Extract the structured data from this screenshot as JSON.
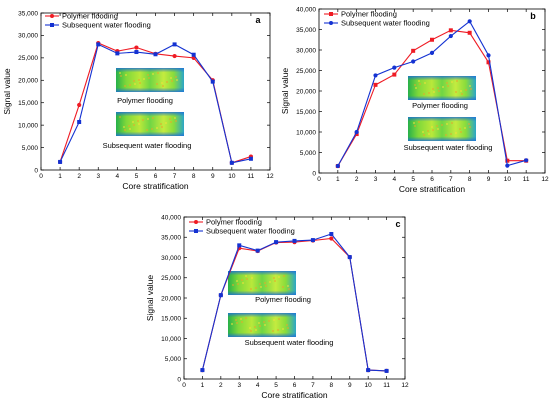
{
  "figure": {
    "colors": {
      "polymer": "#ef1b24",
      "water": "#1432d2",
      "axis": "#000000",
      "background": "#ffffff"
    },
    "charts_order": [
      "a",
      "b",
      "c"
    ]
  },
  "chart_data": [
    {
      "panel": "a",
      "type": "line",
      "xlabel": "Core stratification",
      "ylabel": "Signal value",
      "xlim": [
        0,
        12
      ],
      "ylim": [
        0,
        35000
      ],
      "xticks": [
        0,
        1,
        2,
        3,
        4,
        5,
        6,
        7,
        8,
        9,
        10,
        11,
        12
      ],
      "xtick_labels": [
        "0",
        "1",
        "2",
        "3",
        "4",
        "5",
        "6",
        "7",
        "8",
        "9",
        "10",
        "11",
        "12"
      ],
      "yticks": [
        0,
        5000,
        10000,
        15000,
        20000,
        25000,
        30000,
        35000
      ],
      "ytick_labels": [
        "0",
        "5,000",
        "10,000",
        "15,000",
        "20,000",
        "25,000",
        "30,000",
        "35,000"
      ],
      "x": [
        1,
        2,
        3,
        4,
        5,
        6,
        7,
        8,
        9,
        10,
        11
      ],
      "series": [
        {
          "name": "Polymer flooding",
          "marker": "circle",
          "color": "#ef1b24",
          "values": [
            1800,
            14500,
            28300,
            26500,
            27300,
            25900,
            25400,
            25000,
            20000,
            1600,
            3000
          ]
        },
        {
          "name": "Subsequent water flooding",
          "marker": "square",
          "color": "#1432d2",
          "values": [
            1800,
            10700,
            28000,
            26000,
            26300,
            25800,
            28000,
            25700,
            19700,
            1600,
            2500
          ]
        }
      ],
      "legend_position": "top-left",
      "inset_labels": [
        "Polymer flooding",
        "Subsequent water flooding"
      ]
    },
    {
      "panel": "b",
      "type": "line",
      "xlabel": "Core stratification",
      "ylabel": "Signal value",
      "xlim": [
        0,
        12
      ],
      "ylim": [
        0,
        40000
      ],
      "xticks": [
        0,
        1,
        2,
        3,
        4,
        5,
        6,
        7,
        8,
        9,
        10,
        11,
        12
      ],
      "xtick_labels": [
        "0",
        "1",
        "2",
        "3",
        "4",
        "5",
        "6",
        "7",
        "8",
        "9",
        "10",
        "11",
        "12"
      ],
      "yticks": [
        0,
        5000,
        10000,
        15000,
        20000,
        25000,
        30000,
        35000,
        40000
      ],
      "ytick_labels": [
        "0",
        "5,000",
        "10,000",
        "15,000",
        "20,000",
        "25,000",
        "30,000",
        "35,000",
        "40,000"
      ],
      "x": [
        1,
        2,
        3,
        4,
        5,
        6,
        7,
        8,
        9,
        10,
        11
      ],
      "series": [
        {
          "name": "Polymer flooding",
          "marker": "square",
          "color": "#ef1b24",
          "values": [
            1700,
            9500,
            21500,
            24000,
            29800,
            32500,
            34800,
            34200,
            27000,
            3000,
            3000
          ]
        },
        {
          "name": "Subsequent water flooding",
          "marker": "circle",
          "color": "#1432d2",
          "values": [
            1700,
            10000,
            23800,
            25700,
            27200,
            29300,
            33400,
            37000,
            28700,
            1800,
            3100
          ]
        }
      ],
      "legend_position": "top-left",
      "inset_labels": [
        "Polymer flooding",
        "Subsequent water flooding"
      ]
    },
    {
      "panel": "c",
      "type": "line",
      "xlabel": "Core stratification",
      "ylabel": "Signal value",
      "xlim": [
        0,
        12
      ],
      "ylim": [
        0,
        40000
      ],
      "xticks": [
        0,
        1,
        2,
        3,
        4,
        5,
        6,
        7,
        8,
        9,
        10,
        11,
        12
      ],
      "xtick_labels": [
        "0",
        "1",
        "2",
        "3",
        "4",
        "5",
        "6",
        "7",
        "8",
        "9",
        "10",
        "11",
        "12"
      ],
      "yticks": [
        0,
        5000,
        10000,
        15000,
        20000,
        25000,
        30000,
        35000,
        40000
      ],
      "ytick_labels": [
        "0",
        "5,000",
        "10,000",
        "15,000",
        "20,000",
        "25,000",
        "30,000",
        "35,000",
        "40,000"
      ],
      "x": [
        1,
        2,
        3,
        4,
        5,
        6,
        7,
        8,
        9,
        10,
        11
      ],
      "series": [
        {
          "name": "Polymer flooding",
          "marker": "circle",
          "color": "#ef1b24",
          "values": [
            2200,
            20700,
            32300,
            31600,
            33700,
            33800,
            34200,
            34700,
            30100,
            2200,
            2000
          ]
        },
        {
          "name": "Subsequent water flooding",
          "marker": "square",
          "color": "#1432d2",
          "values": [
            2200,
            20700,
            33000,
            31700,
            33800,
            34100,
            34300,
            35800,
            30100,
            2200,
            2000
          ]
        }
      ],
      "legend_position": "top-left",
      "inset_labels": [
        "Polymer flooding",
        "Subsequent water flooding"
      ]
    }
  ]
}
